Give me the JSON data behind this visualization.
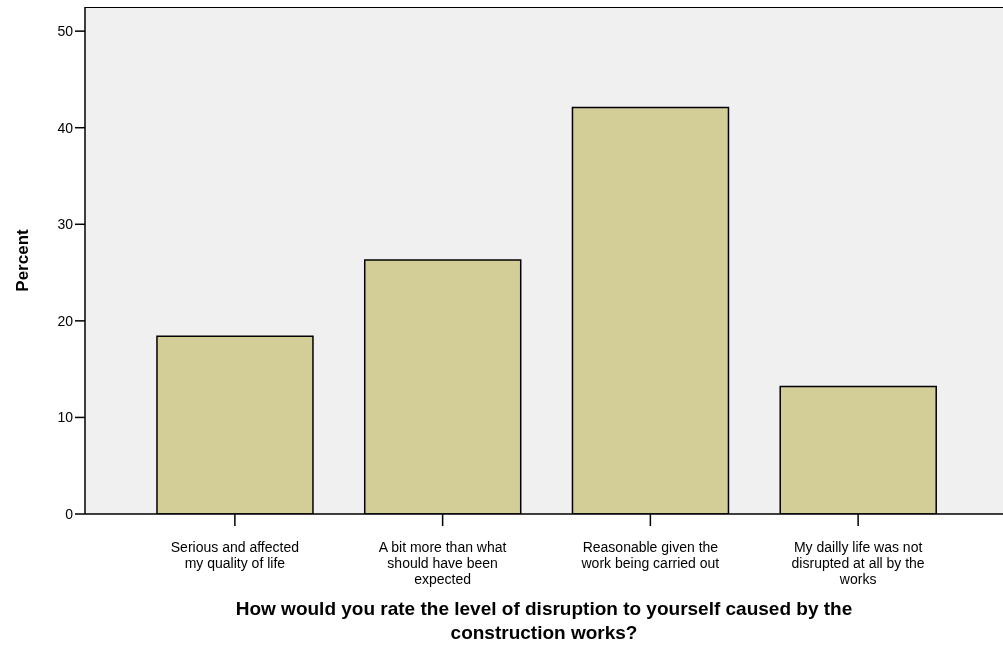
{
  "chart_data": {
    "type": "bar",
    "xlabel": "How would you rate the level of disruption to yourself caused by the construction works?",
    "ylabel": "Percent",
    "categories": [
      "Serious and affected my quality of life",
      "A bit more than what should have been expected",
      "Reasonable given the work being carried out",
      "My dailly life was not disrupted at all by the works"
    ],
    "values": [
      18.4,
      26.3,
      42.1,
      13.2
    ],
    "color": "#d3ce97",
    "ylim": [
      0,
      52.5
    ],
    "yticks": [
      0,
      10,
      20,
      30,
      40,
      50
    ]
  }
}
